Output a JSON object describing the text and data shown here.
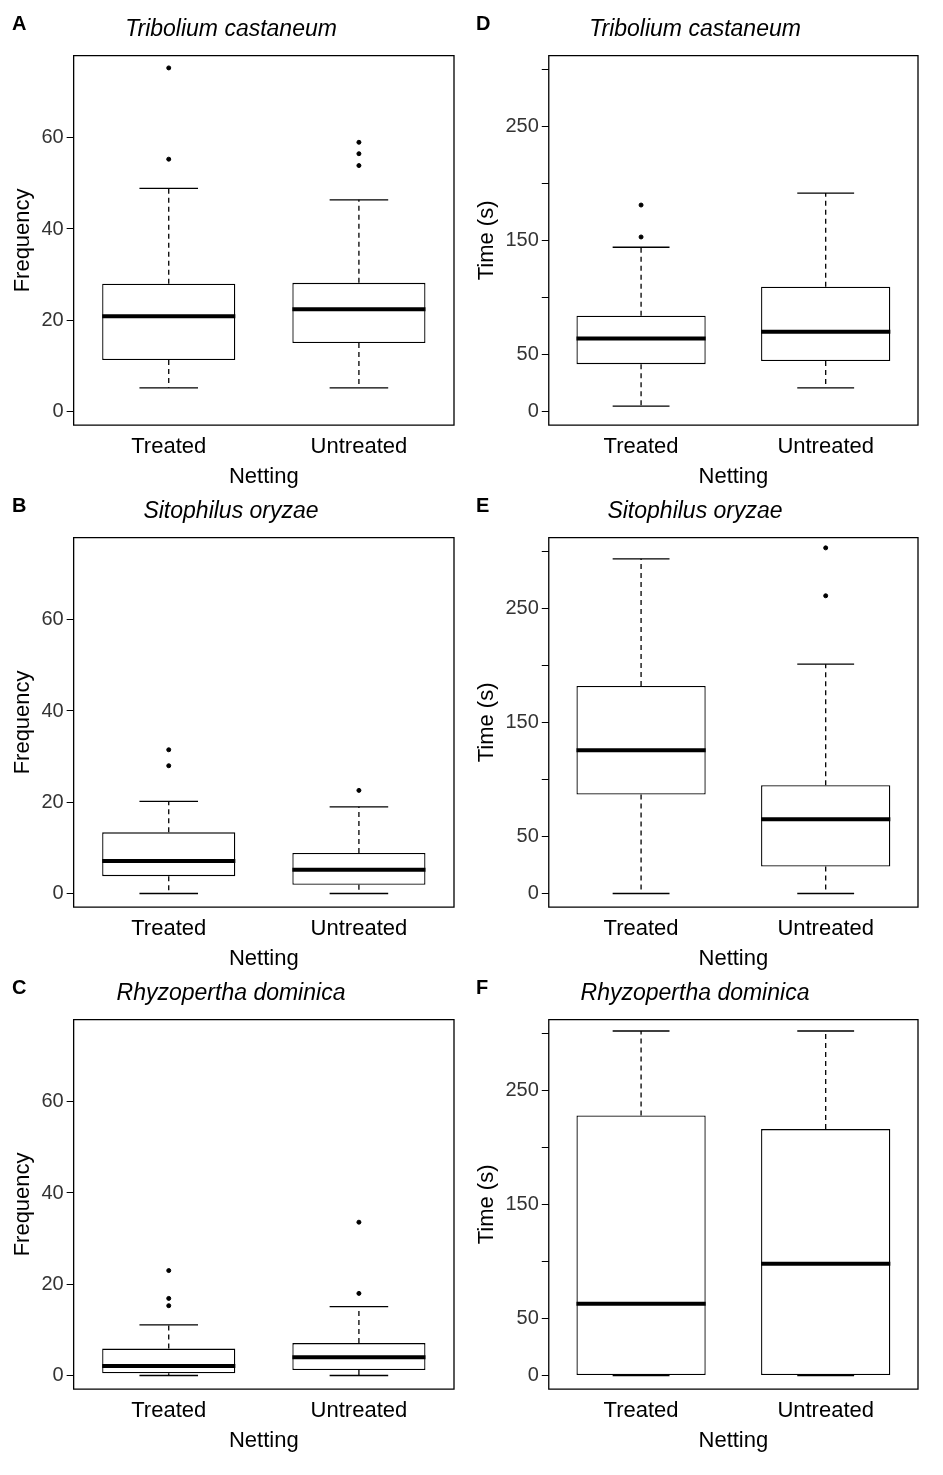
{
  "chart_data": [
    {
      "type": "box",
      "title": "Tribolium castaneum",
      "xlabel": "Netting",
      "ylabel": "Frequency",
      "annotations": [
        "A"
      ],
      "categories": [
        "Treated",
        "Untreated"
      ],
      "ylim": [
        -3,
        78
      ],
      "yticks": [
        0,
        20,
        40,
        60
      ],
      "grid": false,
      "boxes": [
        {
          "low": 5.2,
          "q1": 11.3,
          "median": 20.9,
          "q3": 28,
          "high": 48.9,
          "outliers": [
            55.3,
            75.3
          ]
        },
        {
          "low": 5.2,
          "q1": 15,
          "median": 22.4,
          "q3": 28.2,
          "high": 46.4,
          "outliers": [
            53.9,
            56.5,
            59
          ]
        }
      ]
    },
    {
      "type": "box",
      "title": "Tribolium castaneum",
      "xlabel": "Netting",
      "ylabel": "Time (s)",
      "annotations": [
        "D"
      ],
      "categories": [
        "Treated",
        "Untreated"
      ],
      "ylim": [
        -12,
        312
      ],
      "yticks": [
        0,
        50,
        {
          "value": 100,
          "label": null
        },
        150,
        {
          "value": 200,
          "label": null
        },
        250,
        {
          "value": 300,
          "label": null
        }
      ],
      "grid": false,
      "boxes": [
        {
          "low": 4.7,
          "q1": 41.5,
          "median": 64,
          "q3": 84,
          "high": 144,
          "outliers": [
            153,
            181
          ]
        },
        {
          "low": 20.8,
          "q1": 44.3,
          "median": 70,
          "q3": 109.4,
          "high": 191.5
        }
      ]
    },
    {
      "type": "box",
      "title": "Sitophilus oryzae",
      "xlabel": "Netting",
      "ylabel": "Frequency",
      "annotations": [
        "B"
      ],
      "categories": [
        "Treated",
        "Untreated"
      ],
      "ylim": [
        -3,
        78
      ],
      "yticks": [
        0,
        20,
        40,
        60
      ],
      "grid": false,
      "boxes": [
        {
          "low": 0,
          "q1": 3.8,
          "median": 7.1,
          "q3": 13.4,
          "high": 20.2,
          "outliers": [
            28,
            31.5
          ]
        },
        {
          "low": 0,
          "q1": 1.9,
          "median": 5.2,
          "q3": 8.9,
          "high": 19,
          "outliers": [
            22.6
          ]
        }
      ]
    },
    {
      "type": "box",
      "title": "Sitophilus oryzae",
      "xlabel": "Netting",
      "ylabel": "Time (s)",
      "annotations": [
        "E"
      ],
      "categories": [
        "Treated",
        "Untreated"
      ],
      "ylim": [
        -12,
        312
      ],
      "yticks": [
        0,
        50,
        {
          "value": 100,
          "label": null
        },
        150,
        {
          "value": 200,
          "label": null
        },
        250,
        {
          "value": 300,
          "label": null
        }
      ],
      "grid": false,
      "boxes": [
        {
          "low": 0,
          "q1": 86.8,
          "median": 125.5,
          "q3": 182,
          "high": 293.4
        },
        {
          "low": 0,
          "q1": 23.6,
          "median": 65,
          "q3": 95,
          "high": 201,
          "outliers": [
            261,
            303
          ]
        }
      ]
    },
    {
      "type": "box",
      "title": "Rhyzopertha dominica",
      "xlabel": "Netting",
      "ylabel": "Frequency",
      "annotations": [
        "C"
      ],
      "categories": [
        "Treated",
        "Untreated"
      ],
      "ylim": [
        -3,
        78
      ],
      "yticks": [
        0,
        20,
        40,
        60
      ],
      "grid": false,
      "boxes": [
        {
          "low": 0,
          "q1": 0.5,
          "median": 2.1,
          "q3": 5.9,
          "high": 11.1,
          "outliers": [
            15.3,
            16.9,
            23
          ]
        },
        {
          "low": 0,
          "q1": 1.2,
          "median": 4,
          "q3": 7.1,
          "high": 15.1,
          "outliers": [
            18,
            33.6
          ]
        }
      ]
    },
    {
      "type": "box",
      "title": "Rhyzopertha dominica",
      "xlabel": "Netting",
      "ylabel": "Time (s)",
      "annotations": [
        "F"
      ],
      "categories": [
        "Treated",
        "Untreated"
      ],
      "ylim": [
        -12,
        312
      ],
      "yticks": [
        0,
        50,
        {
          "value": 100,
          "label": null
        },
        150,
        {
          "value": 200,
          "label": null
        },
        250,
        {
          "value": 300,
          "label": null
        }
      ],
      "grid": false,
      "boxes": [
        {
          "low": 0,
          "q1": 0,
          "median": 63,
          "q3": 228,
          "high": 302
        },
        {
          "low": 0,
          "q1": 0,
          "median": 98,
          "q3": 216,
          "high": 302
        }
      ]
    }
  ]
}
